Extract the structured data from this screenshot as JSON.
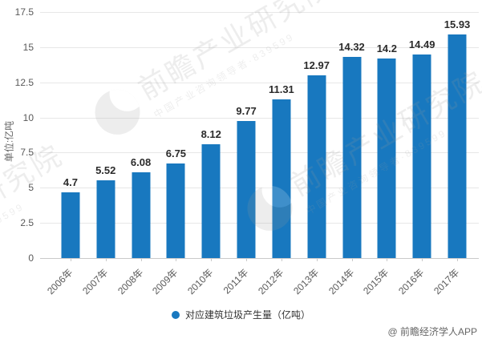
{
  "chart_data": {
    "type": "bar",
    "title": "",
    "categories": [
      "2006年",
      "2007年",
      "2008年",
      "2009年",
      "2010年",
      "2011年",
      "2012年",
      "2013年",
      "2014年",
      "2015年",
      "2016年",
      "2017年"
    ],
    "values": [
      4.7,
      5.52,
      6.08,
      6.75,
      8.12,
      9.77,
      11.31,
      12.97,
      14.32,
      14.2,
      14.49,
      15.93
    ],
    "value_labels": [
      "4.7",
      "5.52",
      "6.08",
      "6.75",
      "8.12",
      "9.77",
      "11.31",
      "12.97",
      "14.32",
      "14.2",
      "14.49",
      "15.93"
    ],
    "series": [
      {
        "name": "对应建筑垃圾产生量（亿吨）",
        "values": [
          4.7,
          5.52,
          6.08,
          6.75,
          8.12,
          9.77,
          11.31,
          12.97,
          14.32,
          14.2,
          14.49,
          15.93
        ]
      }
    ],
    "xlabel": "",
    "ylabel": "单位:亿吨",
    "yticks": [
      "17.5",
      "15",
      "12.5",
      "10",
      "7.5",
      "5",
      "2.5",
      "0"
    ],
    "ylim": [
      0,
      17.5
    ],
    "grid": true,
    "legend_position": "bottom",
    "bar_color": "#1878bf",
    "grid_color": "#e7e7e7",
    "axis_line_color": "#c9c9c9"
  },
  "legend": {
    "marker": "circle-icon",
    "label": "对应建筑垃圾产生量（亿吨）"
  },
  "watermark": {
    "brand": "前瞻产业研究院",
    "tagline": "中国产业咨询领导者·839599"
  },
  "footer": {
    "attribution": "@ 前瞻经济学人APP"
  }
}
